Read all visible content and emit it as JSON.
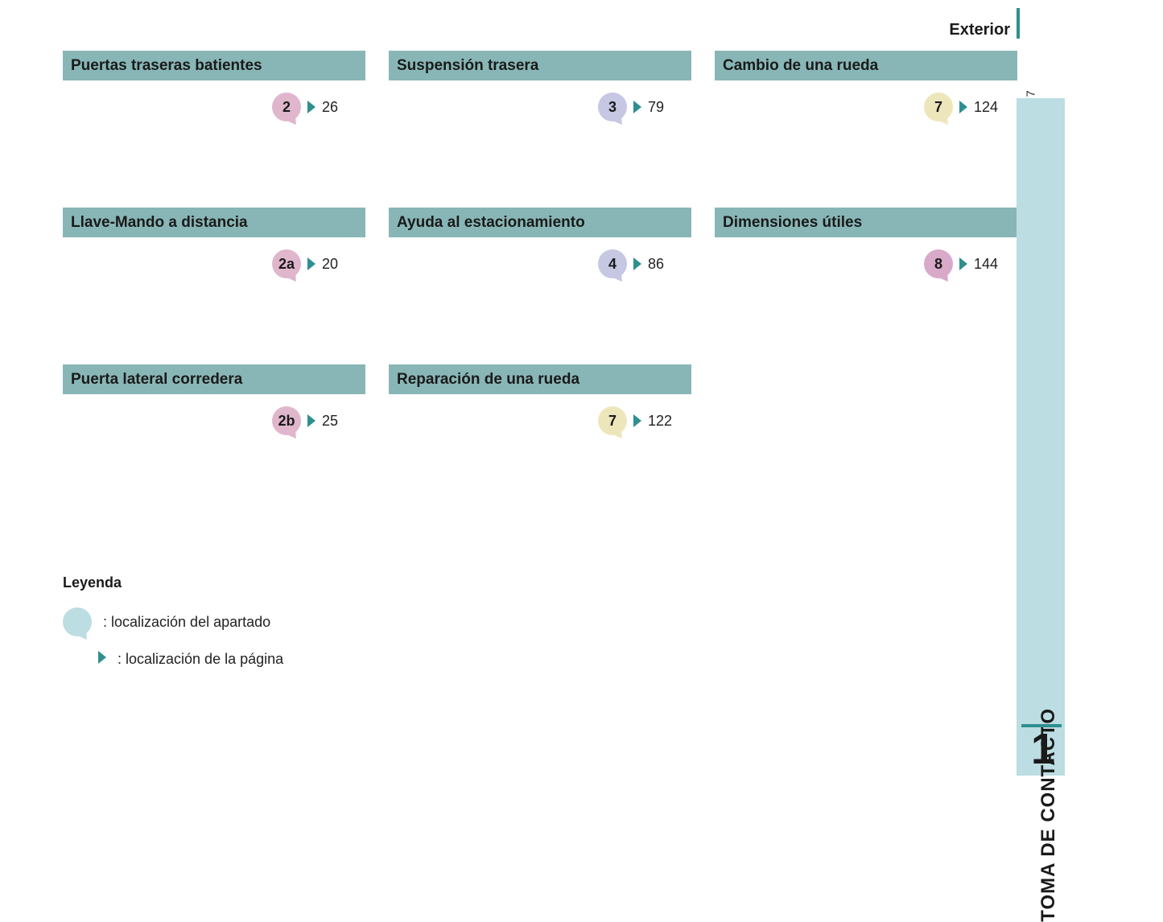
{
  "colors": {
    "header_bg": "#88b6b6",
    "accent_teal": "#2f8f8f",
    "arrow": "#2f8f8f",
    "side_tab_bg": "#bcdde1",
    "bubble_pink": "#e0b6cc",
    "bubble_lavender": "#c5c7e3",
    "bubble_cream": "#eee6bb",
    "bubble_mauve": "#d8a9c8",
    "legend_bubble": "#bcdde1",
    "text": "#1a1a1a"
  },
  "fontsizes": {
    "header": 20,
    "card_title": 19,
    "bubble": 18,
    "page_ref": 18,
    "legend_title": 18,
    "legend_text": 18,
    "side_tab_text": 24,
    "side_tab_num": 54,
    "page_num_small": 15
  },
  "header": {
    "title": "Exterior"
  },
  "page_number": "7",
  "side_tab": {
    "label": "TOMA DE CONTACTO",
    "number": "1"
  },
  "legend": {
    "title": "Leyenda",
    "row1": ": localización del apartado",
    "row2": ": localización de la página"
  },
  "cards": [
    {
      "title": "Puertas traseras batientes",
      "bubble": "2",
      "bubble_color": "bubble_pink",
      "page": "26"
    },
    {
      "title": "Suspensión trasera",
      "bubble": "3",
      "bubble_color": "bubble_lavender",
      "page": "79"
    },
    {
      "title": "Cambio de una rueda",
      "bubble": "7",
      "bubble_color": "bubble_cream",
      "page": "124"
    },
    {
      "title": "Llave-Mando a distancia",
      "bubble": "2a",
      "bubble_color": "bubble_pink",
      "page": "20"
    },
    {
      "title": "Ayuda al estacionamiento",
      "bubble": "4",
      "bubble_color": "bubble_lavender",
      "page": "86"
    },
    {
      "title": "Dimensiones útiles",
      "bubble": "8",
      "bubble_color": "bubble_mauve",
      "page": "144"
    },
    {
      "title": "Puerta lateral corredera",
      "bubble": "2b",
      "bubble_color": "bubble_pink",
      "page": "25"
    },
    {
      "title": "Reparación de una rueda",
      "bubble": "7",
      "bubble_color": "bubble_cream",
      "page": "122"
    }
  ]
}
